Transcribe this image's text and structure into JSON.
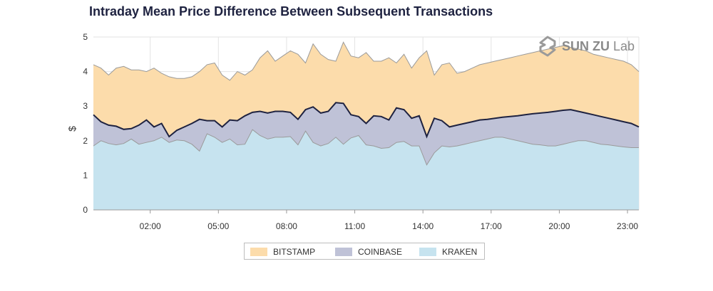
{
  "title": "Intraday Mean Price Difference Between Subsequent Transactions",
  "logo": {
    "brand": "SUN ZU",
    "suffix": "Lab",
    "icon": "sun-zu-logo-icon"
  },
  "colors": {
    "bitstamp": "#fcdcab",
    "coinbase": "#bfc2d7",
    "kraken": "#c6e3ef",
    "line": "#1e2240",
    "grid": "#e3e3e3"
  },
  "chart_data": {
    "type": "area",
    "title": "Intraday Mean Price Difference Between Subsequent Transactions",
    "ylabel": "$",
    "xlabel": "",
    "stacked": false,
    "ylim": [
      0,
      5
    ],
    "xlim": [
      -0.5,
      23.5
    ],
    "yticks": [
      0,
      1,
      2,
      3,
      4,
      5
    ],
    "xtick_values": [
      2,
      5,
      8,
      11,
      14,
      17,
      20,
      23
    ],
    "xtick_labels": [
      "02:00",
      "05:00",
      "08:00",
      "11:00",
      "14:00",
      "17:00",
      "20:00",
      "23:00"
    ],
    "legend_position": "bottom-center",
    "grid": true,
    "x": [
      -0.5,
      -0.167,
      0.167,
      0.5,
      0.833,
      1.167,
      1.5,
      1.833,
      2.167,
      2.5,
      2.833,
      3.167,
      3.5,
      3.833,
      4.167,
      4.5,
      4.833,
      5.167,
      5.5,
      5.833,
      6.167,
      6.5,
      6.833,
      7.167,
      7.5,
      7.833,
      8.167,
      8.5,
      8.833,
      9.167,
      9.5,
      9.833,
      10.167,
      10.5,
      10.833,
      11.167,
      11.5,
      11.833,
      12.167,
      12.5,
      12.833,
      13.167,
      13.5,
      13.833,
      14.167,
      14.5,
      14.833,
      15.167,
      15.5,
      15.833,
      16.167,
      16.5,
      16.833,
      17.167,
      17.5,
      17.833,
      18.167,
      18.5,
      18.833,
      19.167,
      19.5,
      19.833,
      20.167,
      20.5,
      20.833,
      21.167,
      21.5,
      21.833,
      22.167,
      22.5,
      22.833,
      23.167,
      23.5
    ],
    "series": [
      {
        "name": "BITSTAMP",
        "color": "#fcdcab",
        "values": [
          4.2,
          4.1,
          3.9,
          4.1,
          4.15,
          4.05,
          4.05,
          4.0,
          4.1,
          3.95,
          3.85,
          3.8,
          3.8,
          3.85,
          4.0,
          4.2,
          4.25,
          3.9,
          3.75,
          4.0,
          3.9,
          4.05,
          4.4,
          4.6,
          4.3,
          4.45,
          4.6,
          4.5,
          4.25,
          4.8,
          4.5,
          4.35,
          4.3,
          4.85,
          4.45,
          4.4,
          4.55,
          4.3,
          4.3,
          4.4,
          4.25,
          4.5,
          4.1,
          4.4,
          4.6,
          3.9,
          4.2,
          4.25,
          3.95,
          4.0,
          4.1,
          4.2,
          4.25,
          4.3,
          4.35,
          4.4,
          4.45,
          4.5,
          4.55,
          4.6,
          4.65,
          4.7,
          4.75,
          4.7,
          4.65,
          4.6,
          4.5,
          4.45,
          4.4,
          4.35,
          4.3,
          4.2,
          4.0
        ]
      },
      {
        "name": "COINBASE",
        "color": "#bfc2d7",
        "values": [
          2.75,
          2.55,
          2.45,
          2.42,
          2.33,
          2.35,
          2.45,
          2.6,
          2.4,
          2.5,
          2.12,
          2.3,
          2.4,
          2.5,
          2.62,
          2.58,
          2.58,
          2.4,
          2.6,
          2.58,
          2.72,
          2.82,
          2.85,
          2.8,
          2.85,
          2.85,
          2.82,
          2.62,
          2.9,
          2.98,
          2.8,
          2.85,
          3.1,
          3.08,
          2.75,
          2.7,
          2.5,
          2.72,
          2.7,
          2.6,
          2.95,
          2.9,
          2.65,
          2.72,
          2.12,
          2.65,
          2.58,
          2.4,
          2.45,
          2.5,
          2.55,
          2.6,
          2.62,
          2.65,
          2.68,
          2.7,
          2.72,
          2.75,
          2.78,
          2.8,
          2.82,
          2.85,
          2.88,
          2.9,
          2.85,
          2.8,
          2.75,
          2.7,
          2.65,
          2.6,
          2.55,
          2.5,
          2.4
        ]
      },
      {
        "name": "KRAKEN",
        "color": "#c6e3ef",
        "values": [
          1.85,
          2.0,
          1.92,
          1.88,
          1.92,
          2.05,
          1.9,
          1.95,
          2.0,
          2.1,
          1.95,
          2.02,
          2.0,
          1.9,
          1.7,
          2.2,
          2.1,
          1.95,
          2.05,
          1.88,
          1.9,
          2.32,
          2.15,
          2.05,
          2.1,
          2.1,
          2.12,
          1.88,
          2.28,
          1.95,
          1.85,
          1.92,
          2.1,
          1.9,
          2.08,
          2.15,
          1.88,
          1.85,
          1.78,
          1.8,
          1.95,
          1.98,
          1.85,
          1.85,
          1.3,
          1.65,
          1.85,
          1.82,
          1.85,
          1.9,
          1.95,
          2.0,
          2.05,
          2.1,
          2.1,
          2.05,
          2.0,
          1.95,
          1.9,
          1.88,
          1.85,
          1.85,
          1.9,
          1.95,
          2.0,
          2.0,
          1.95,
          1.9,
          1.88,
          1.85,
          1.82,
          1.8,
          1.8
        ]
      }
    ]
  }
}
